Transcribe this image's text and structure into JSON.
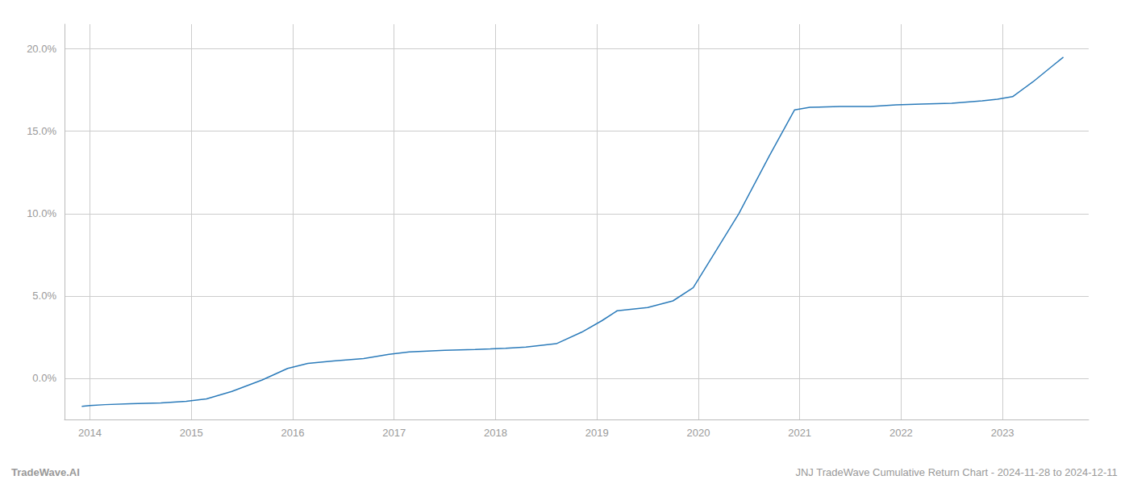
{
  "chart_data": {
    "type": "line",
    "x": [
      2013.92,
      2014.0,
      2014.15,
      2014.4,
      2014.7,
      2014.95,
      2015.15,
      2015.4,
      2015.7,
      2015.95,
      2016.15,
      2016.4,
      2016.7,
      2016.95,
      2017.15,
      2017.5,
      2017.8,
      2017.95,
      2018.1,
      2018.3,
      2018.6,
      2018.85,
      2019.05,
      2019.2,
      2019.5,
      2019.75,
      2019.95,
      2020.15,
      2020.4,
      2020.7,
      2020.95,
      2021.1,
      2021.4,
      2021.7,
      2021.95,
      2022.2,
      2022.5,
      2022.8,
      2022.95,
      2023.1,
      2023.3,
      2023.5,
      2023.6
    ],
    "values": [
      -1.7,
      -1.65,
      -1.6,
      -1.55,
      -1.5,
      -1.4,
      -1.25,
      -0.8,
      -0.1,
      0.6,
      0.9,
      1.05,
      1.2,
      1.45,
      1.6,
      1.7,
      1.75,
      1.78,
      1.82,
      1.9,
      2.1,
      2.8,
      3.5,
      4.1,
      4.3,
      4.7,
      5.5,
      7.5,
      10.0,
      13.5,
      16.3,
      16.45,
      16.5,
      16.5,
      16.6,
      16.65,
      16.7,
      16.85,
      16.95,
      17.1,
      18.0,
      19.0,
      19.5
    ],
    "color": "#2b7bba",
    "xlim": [
      2013.75,
      2023.85
    ],
    "xticks": [
      2014,
      2015,
      2016,
      2017,
      2018,
      2019,
      2020,
      2021,
      2022,
      2023
    ],
    "ylim": [
      -2.5,
      21.5
    ],
    "yticks": [
      {
        "value": 0.0,
        "label": "0.0%"
      },
      {
        "value": 5.0,
        "label": "5.0%"
      },
      {
        "value": 10.0,
        "label": "10.0%"
      },
      {
        "value": 15.0,
        "label": "15.0%"
      },
      {
        "value": 20.0,
        "label": "20.0%"
      }
    ],
    "grid": true,
    "annotations": [
      "TradeWave.AI",
      "JNJ TradeWave Cumulative Return Chart - 2024-11-28 to 2024-12-11"
    ]
  }
}
